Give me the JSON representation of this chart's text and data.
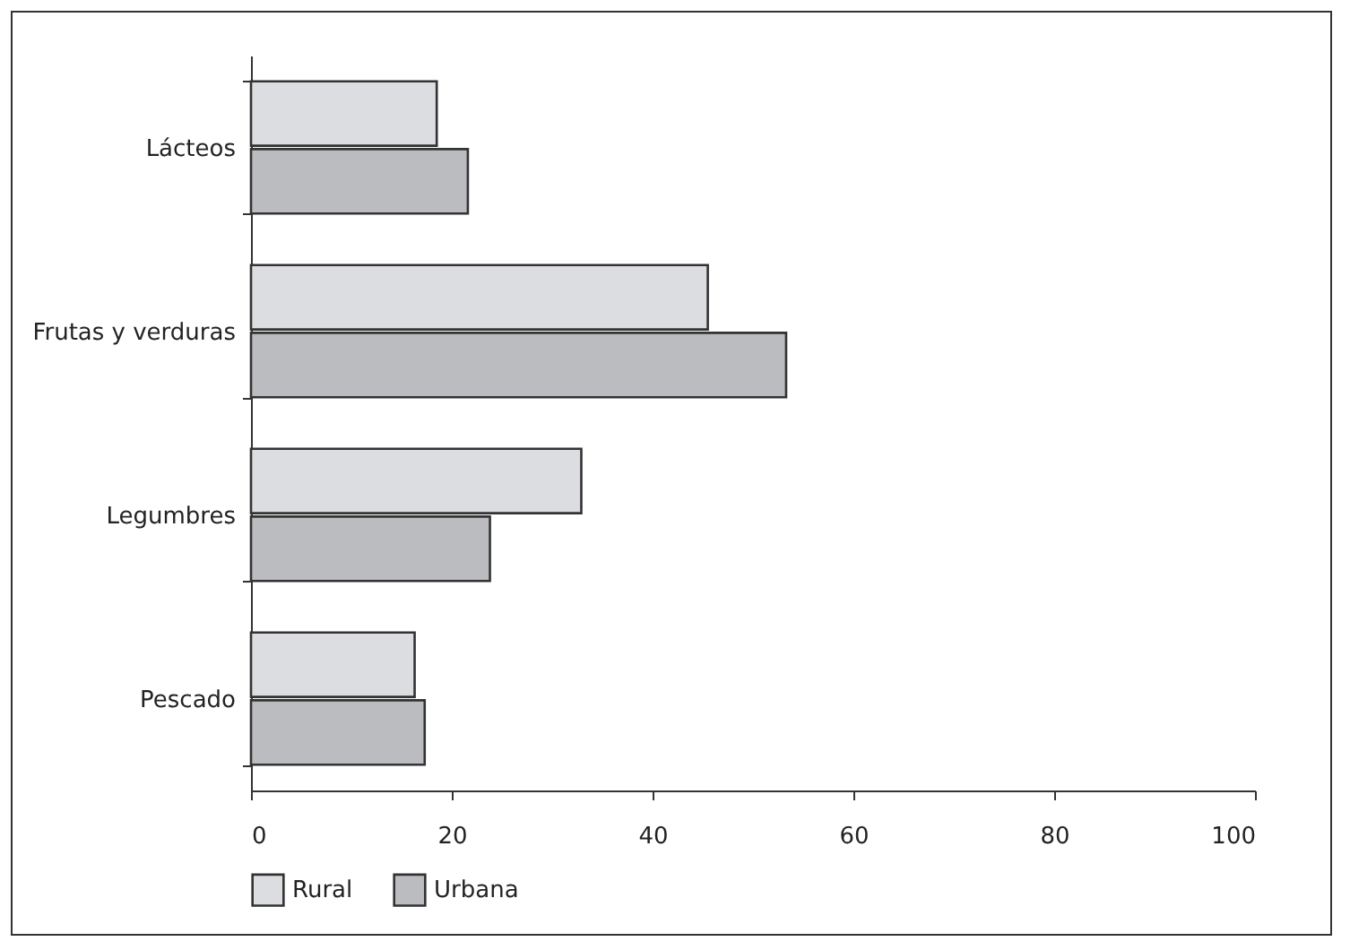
{
  "chart_data": {
    "type": "bar",
    "orientation": "horizontal",
    "categories": [
      "Lácteos",
      "Frutas y verduras",
      "Legumbres",
      "Pescado"
    ],
    "series": [
      {
        "name": "Rural",
        "color": "#dcdde0",
        "values": [
          18.5,
          45.5,
          32.9,
          16.3
        ]
      },
      {
        "name": "Urbana",
        "color": "#bbbcc0",
        "values": [
          21.6,
          53.3,
          23.8,
          17.3
        ]
      }
    ],
    "xlim": [
      0,
      100
    ],
    "xticks": [
      0,
      20,
      40,
      60,
      80,
      100
    ],
    "grid": false,
    "legend": "bottom"
  }
}
